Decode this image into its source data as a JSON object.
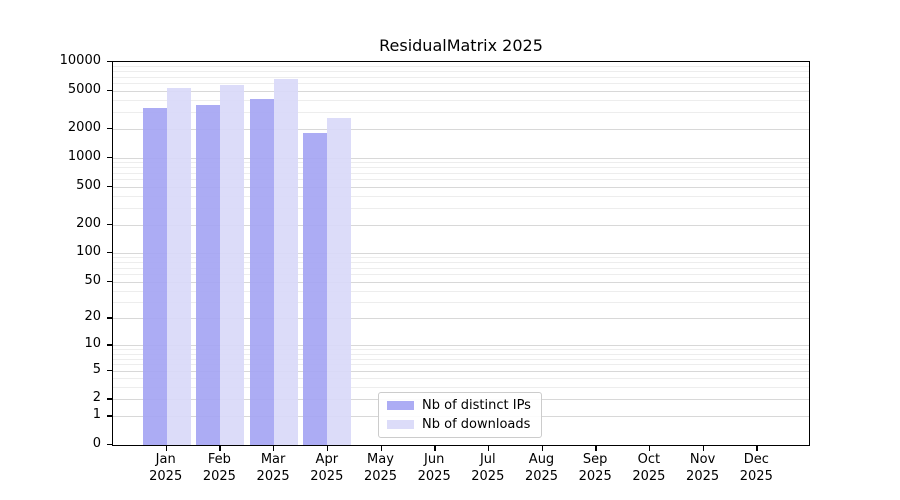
{
  "title": "ResidualMatrix 2025",
  "colors": {
    "distinct_ips": "#a5a5f3",
    "downloads": "#d9d9f8",
    "grid_major": "#d8d8d8",
    "grid_minor": "#ededed",
    "axis": "#000000",
    "background": "#ffffff",
    "legend_border": "#cccccc"
  },
  "y_axis": {
    "tick_labels": [
      "10000",
      "5000",
      "2000",
      "1000",
      "500",
      "200",
      "100",
      "50",
      "20",
      "10",
      "5",
      "2",
      "1",
      "0"
    ],
    "tick_values": [
      10000,
      5000,
      2000,
      1000,
      500,
      200,
      100,
      50,
      20,
      10,
      5,
      2,
      1,
      0
    ],
    "minor_values": [
      3,
      4,
      6,
      7,
      8,
      9,
      30,
      40,
      60,
      70,
      80,
      90,
      300,
      400,
      600,
      700,
      800,
      900,
      3000,
      4000,
      6000,
      7000,
      8000,
      9000
    ]
  },
  "x_axis": {
    "months": [
      "Jan",
      "Feb",
      "Mar",
      "Apr",
      "May",
      "Jun",
      "Jul",
      "Aug",
      "Sep",
      "Oct",
      "Nov",
      "Dec"
    ],
    "year": "2025"
  },
  "legend": {
    "items": [
      {
        "label": "Nb of distinct IPs",
        "color": "#a5a5f3"
      },
      {
        "label": "Nb of downloads",
        "color": "#d9d9f8"
      }
    ]
  },
  "chart_data": {
    "type": "bar",
    "title": "ResidualMatrix 2025",
    "categories": [
      "Jan 2025",
      "Feb 2025",
      "Mar 2025",
      "Apr 2025",
      "May 2025",
      "Jun 2025",
      "Jul 2025",
      "Aug 2025",
      "Sep 2025",
      "Oct 2025",
      "Nov 2025",
      "Dec 2025"
    ],
    "series": [
      {
        "name": "Nb of distinct IPs",
        "color": "#a5a5f3",
        "values": [
          3300,
          3550,
          4100,
          1830,
          0,
          0,
          0,
          0,
          0,
          0,
          0,
          0
        ]
      },
      {
        "name": "Nb of downloads",
        "color": "#d9d9f8",
        "values": [
          5400,
          5800,
          6700,
          2600,
          0,
          0,
          0,
          0,
          0,
          0,
          0,
          0
        ]
      }
    ],
    "xlabel": "",
    "ylabel": "",
    "yscale": "log1p",
    "ylim": [
      0,
      10000
    ],
    "yticks": [
      0,
      1,
      2,
      5,
      10,
      20,
      50,
      100,
      200,
      500,
      1000,
      2000,
      5000,
      10000
    ],
    "grid": true,
    "legend_position": "lower-center-inside"
  }
}
